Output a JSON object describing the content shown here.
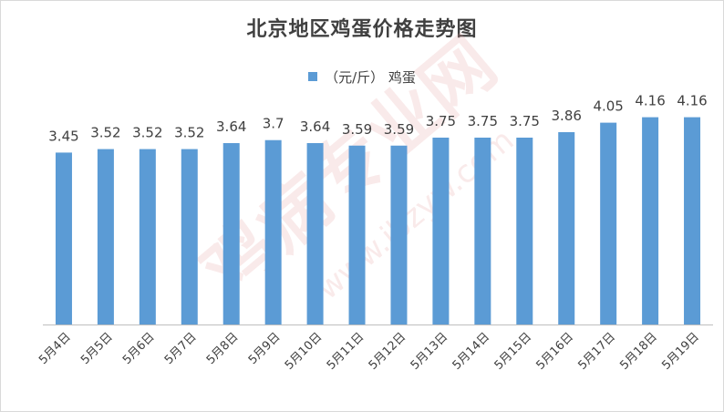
{
  "colors": {
    "bar": "#5b9bd5",
    "axis": "#bfbfbf",
    "text": "#404040",
    "watermark": "#e8a3a3"
  },
  "chart_data": {
    "type": "bar",
    "title": "北京地区鸡蛋价格走势图",
    "categories": [
      "5月4日",
      "5月5日",
      "5月6日",
      "5月7日",
      "5月8日",
      "5月9日",
      "5月10日",
      "5月11日",
      "5月12日",
      "5月13日",
      "5月14日",
      "5月15日",
      "5月16日",
      "5月17日",
      "5月18日",
      "5月19日"
    ],
    "series": [
      {
        "name": "（元/斤） 鸡蛋",
        "values": [
          3.45,
          3.52,
          3.52,
          3.52,
          3.64,
          3.7,
          3.64,
          3.59,
          3.59,
          3.75,
          3.75,
          3.75,
          3.86,
          4.05,
          4.16,
          4.16
        ]
      }
    ],
    "data_labels": [
      "3.45",
      "3.52",
      "3.52",
      "3.52",
      "3.64",
      "3.7",
      "3.64",
      "3.59",
      "3.59",
      "3.75",
      "3.75",
      "3.75",
      "3.86",
      "4.05",
      "4.16",
      "4.16"
    ],
    "ylim": [
      0,
      4.5
    ],
    "legend_position": "top",
    "grid": false
  },
  "watermark": {
    "text": "鸡病专业网",
    "url": "www.jbzyw.com"
  }
}
